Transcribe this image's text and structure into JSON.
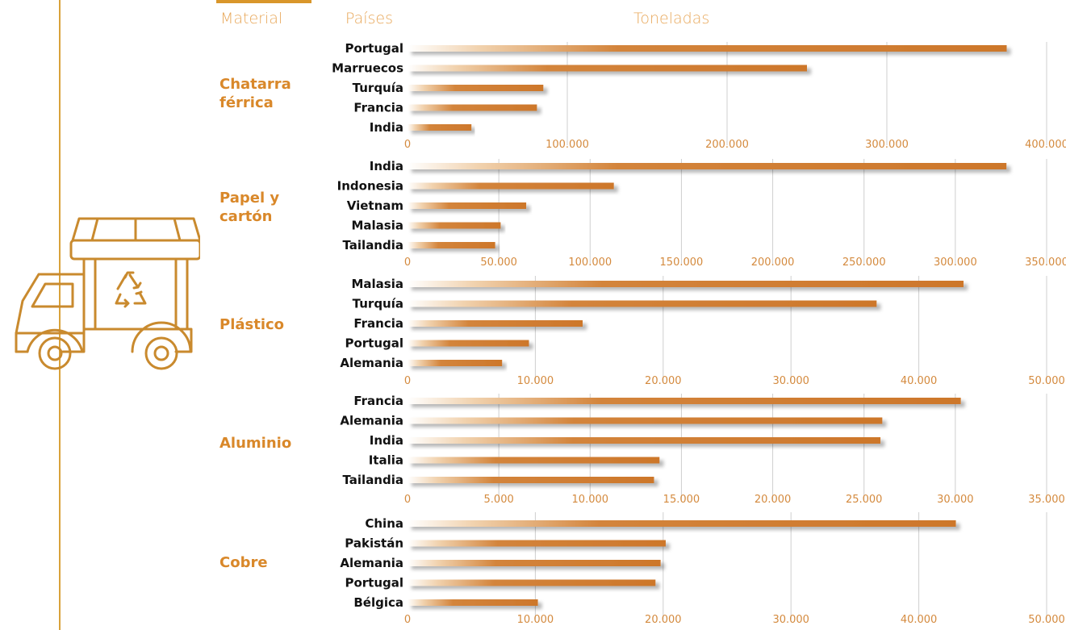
{
  "headers": {
    "material": "Material",
    "paises": "Países",
    "toneladas": "Toneladas"
  },
  "colors": {
    "bar": "#cf7a2e",
    "material_label": "#d9882a",
    "header": "#e8a85b",
    "truck_icon": "#c98a2e",
    "grid": "#cfcfcf"
  },
  "icon": "recycling-truck-icon",
  "chart_data": [
    {
      "type": "bar",
      "orientation": "horizontal",
      "material": "Chatarra férrica",
      "categories": [
        "Portugal",
        "Marruecos",
        "Turquía",
        "Francia",
        "India"
      ],
      "values": [
        375000,
        250000,
        85000,
        81000,
        40000
      ],
      "xlim": [
        0,
        400000
      ],
      "ticks": [
        0,
        100000,
        200000,
        300000,
        400000
      ],
      "tick_labels": [
        "0",
        "100.000",
        "200.000",
        "300.000",
        "400.000"
      ]
    },
    {
      "type": "bar",
      "orientation": "horizontal",
      "material": "Papel y cartón",
      "categories": [
        "India",
        "Indonesia",
        "Vietnam",
        "Malasia",
        "Tailandia"
      ],
      "values": [
        328000,
        113000,
        65000,
        51000,
        48000
      ],
      "xlim": [
        0,
        350000
      ],
      "ticks": [
        0,
        50000,
        100000,
        150000,
        200000,
        250000,
        300000,
        350000
      ],
      "tick_labels": [
        "0",
        "50.000",
        "100.000",
        "150.000",
        "200.000",
        "250.000",
        "300.000",
        "350.000"
      ]
    },
    {
      "type": "bar",
      "orientation": "horizontal",
      "material": "Plástico",
      "categories": [
        "Malasia",
        "Turquía",
        "Francia",
        "Portugal",
        "Alemania"
      ],
      "values": [
        43500,
        36700,
        13700,
        9500,
        7400
      ],
      "xlim": [
        0,
        50000
      ],
      "ticks": [
        0,
        10000,
        20000,
        30000,
        40000,
        50000
      ],
      "tick_labels": [
        "0",
        "10.000",
        "20.000",
        "30.000",
        "40.000",
        "50.000"
      ]
    },
    {
      "type": "bar",
      "orientation": "horizontal",
      "material": "Aluminio",
      "categories": [
        "Francia",
        "Alemania",
        "India",
        "Italia",
        "Tailandia"
      ],
      "values": [
        30300,
        26000,
        25900,
        13800,
        13500
      ],
      "xlim": [
        0,
        35000
      ],
      "ticks": [
        0,
        5000,
        10000,
        15000,
        20000,
        25000,
        30000,
        35000
      ],
      "tick_labels": [
        "0",
        "5.000",
        "10.000",
        "15.000",
        "20.000",
        "25.000",
        "30.000",
        "35.000"
      ]
    },
    {
      "type": "bar",
      "orientation": "horizontal",
      "material": "Cobre",
      "categories": [
        "China",
        "Pakistán",
        "Alemania",
        "Portugal",
        "Bélgica"
      ],
      "values": [
        42900,
        20200,
        19800,
        19400,
        10200
      ],
      "xlim": [
        0,
        50000
      ],
      "ticks": [
        0,
        10000,
        20000,
        30000,
        40000,
        50000
      ],
      "tick_labels": [
        "0",
        "10.000",
        "20.000",
        "30.000",
        "40.000",
        "50.000"
      ]
    }
  ]
}
